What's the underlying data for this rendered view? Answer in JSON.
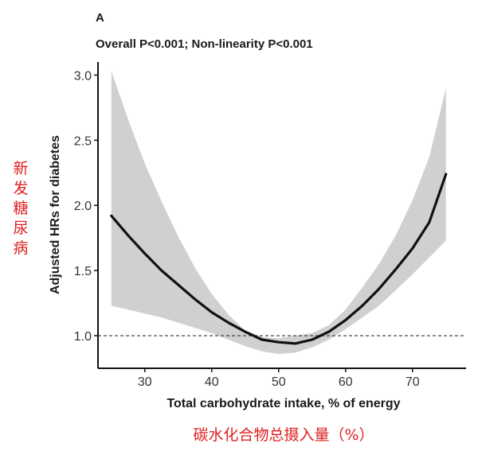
{
  "chart_data": {
    "type": "line",
    "panel_label": "A",
    "subtitle": "Overall P<0.001; Non-linearity P<0.001",
    "xlabel": "Total carbohydrate intake, % of energy",
    "ylabel": "Adjusted HRs for diabetes",
    "xlim": [
      23,
      78
    ],
    "ylim": [
      0.75,
      3.1
    ],
    "x_ticks": [
      "30",
      "40",
      "50",
      "60",
      "70"
    ],
    "y_ticks": [
      "1.0",
      "1.5",
      "2.0",
      "2.5",
      "3.0"
    ],
    "reference_line": {
      "y": 1.0,
      "style": "dashed"
    },
    "series": [
      {
        "x": [
          25,
          27.5,
          30,
          32.5,
          35,
          37.5,
          40,
          42.5,
          45,
          47.5,
          50,
          52.5,
          55,
          57.5,
          60,
          62.5,
          65,
          67.5,
          70,
          72.5,
          75
        ],
        "y": [
          1.92,
          1.77,
          1.63,
          1.5,
          1.39,
          1.28,
          1.18,
          1.1,
          1.03,
          0.97,
          0.95,
          0.94,
          0.97,
          1.03,
          1.12,
          1.23,
          1.36,
          1.51,
          1.67,
          1.87,
          2.24
        ],
        "ci_upper": [
          3.03,
          2.66,
          2.32,
          2.03,
          1.76,
          1.52,
          1.32,
          1.16,
          1.04,
          0.99,
          0.98,
          1.0,
          1.02,
          1.08,
          1.2,
          1.37,
          1.55,
          1.77,
          2.04,
          2.37,
          2.9
        ],
        "ci_lower": [
          1.23,
          1.2,
          1.17,
          1.14,
          1.1,
          1.06,
          1.02,
          0.97,
          0.92,
          0.88,
          0.86,
          0.87,
          0.91,
          0.97,
          1.05,
          1.14,
          1.23,
          1.35,
          1.47,
          1.6,
          1.73
        ]
      }
    ],
    "colors": {
      "line": "#111111",
      "ci_band": "#d0d0d0",
      "reference": "#333333",
      "annotation": "#e02020",
      "axis": "#111111"
    },
    "grid": false
  },
  "annotations": {
    "y_note": [
      "新",
      "发",
      "糖",
      "尿",
      "病"
    ],
    "x_note": "碳水化合物总摄入量（%）"
  }
}
